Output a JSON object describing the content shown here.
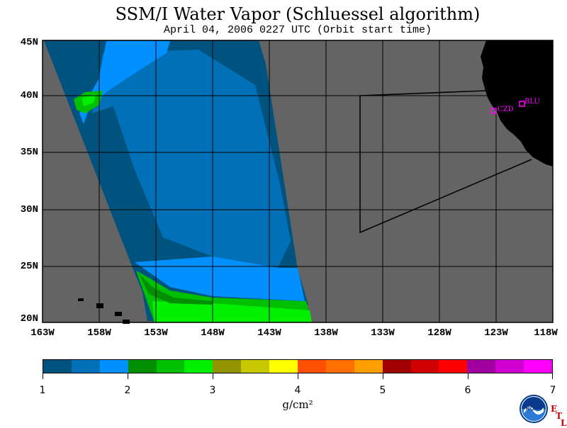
{
  "title": "SSM/I Water Vapor (Schluessel algorithm)",
  "subtitle": "April 04, 2006  0227 UTC  (Orbit start time)",
  "lat_labels": [
    "45N",
    "40N",
    "35N",
    "30N",
    "25N",
    "20N"
  ],
  "lon_labels": [
    "163W",
    "158W",
    "153W",
    "148W",
    "143W",
    "138W",
    "133W",
    "128W",
    "123W",
    "118W"
  ],
  "stations": [
    {
      "label": "CZD"
    },
    {
      "label": "BLU"
    }
  ],
  "colorbar": {
    "colors": [
      "#00537f",
      "#0070b8",
      "#0090ff",
      "#008f00",
      "#00c000",
      "#00f000",
      "#949400",
      "#c8c800",
      "#ffff00",
      "#ff5000",
      "#ff7000",
      "#ffa000",
      "#a00000",
      "#d00000",
      "#ff0000",
      "#a000a0",
      "#d000d0",
      "#ff00ff"
    ],
    "tick_labels": [
      "1",
      "2",
      "3",
      "4",
      "5",
      "6",
      "7"
    ],
    "units": "g/cm²"
  },
  "colors": {
    "ocean_background": "#646464",
    "land": "#000000",
    "station_marker": "#ff00ff",
    "etl_text": "#d00000"
  },
  "logo": {
    "agency": "NOAA",
    "lab": "ETL"
  }
}
